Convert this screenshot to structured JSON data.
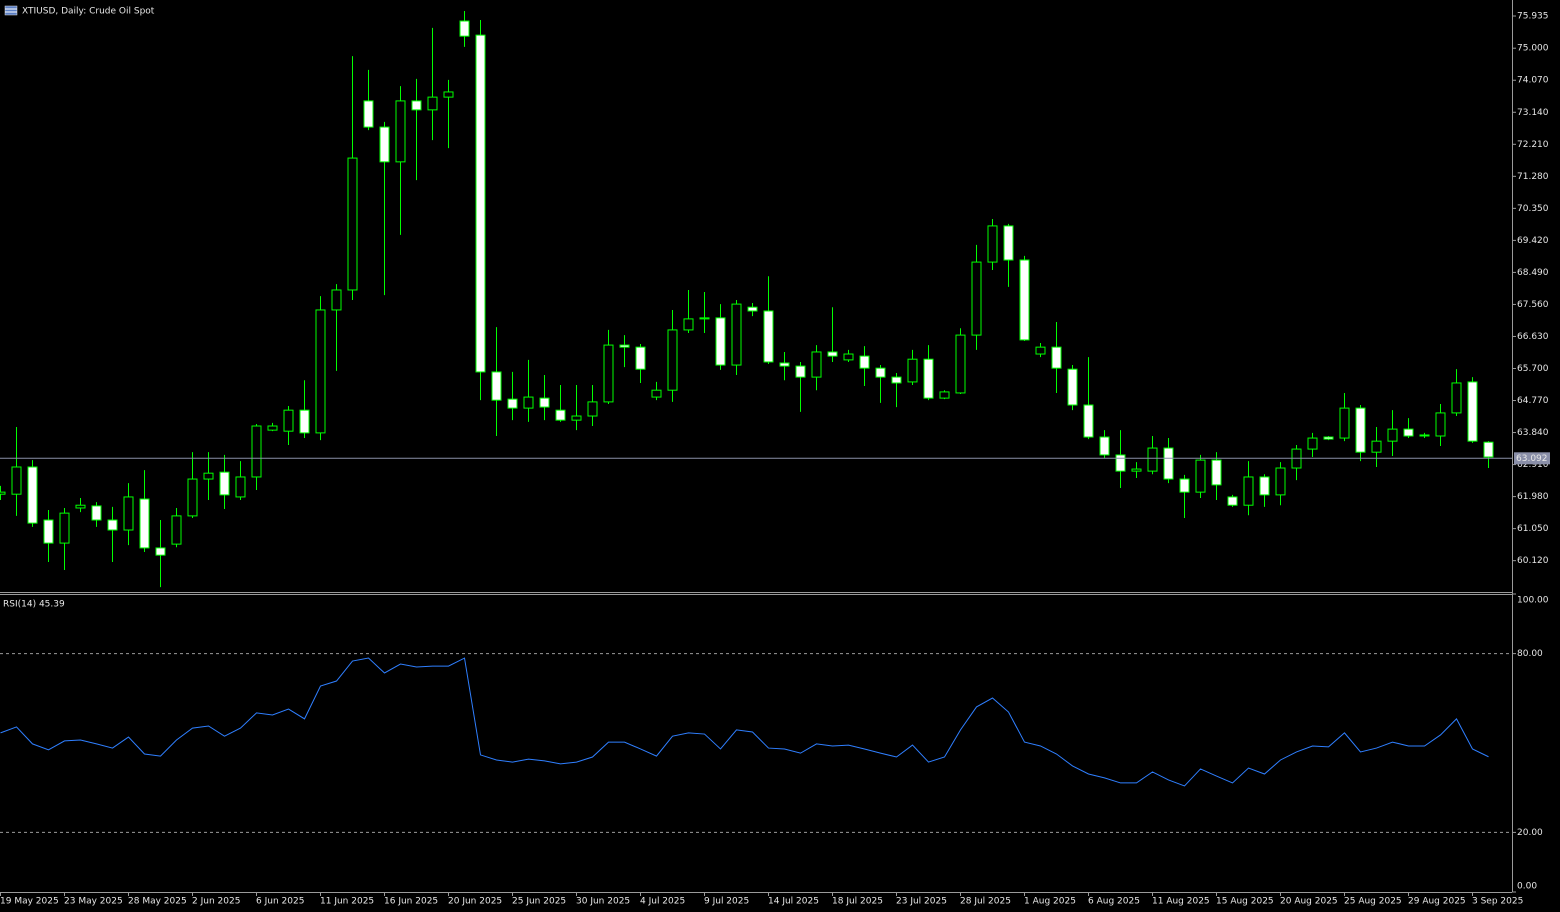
{
  "chart_data": [
    {
      "type": "candlestick",
      "title": "XTIUSD, Daily:  Crude Oil Spot",
      "color": "#00ff00",
      "up_fill": "#000000",
      "down_fill": "#ffffff",
      "categories": [
        "19 May 2025",
        null,
        null,
        null,
        "23 May 2025",
        null,
        null,
        null,
        "28 May 2025",
        null,
        null,
        null,
        "2 Jun 2025",
        null,
        null,
        null,
        "6 Jun 2025",
        null,
        null,
        null,
        "11 Jun 2025",
        null,
        null,
        null,
        "16 Jun 2025",
        null,
        null,
        null,
        "20 Jun 2025",
        null,
        null,
        null,
        "25 Jun 2025",
        null,
        null,
        null,
        "30 Jun 2025",
        null,
        null,
        null,
        "4 Jul 2025",
        null,
        null,
        null,
        "9 Jul 2025",
        null,
        null,
        null,
        "14 Jul 2025",
        null,
        null,
        null,
        "18 Jul 2025",
        null,
        null,
        null,
        "23 Jul 2025",
        null,
        null,
        null,
        "28 Jul 2025",
        null,
        null,
        null,
        "1 Aug 2025",
        null,
        null,
        null,
        "6 Aug 2025",
        null,
        null,
        null,
        "11 Aug 2025",
        null,
        null,
        null,
        "15 Aug 2025",
        null,
        null,
        null,
        "20 Aug 2025",
        null,
        null,
        null,
        "25 Aug 2025",
        null,
        null,
        null,
        "29 Aug 2025",
        null,
        null,
        null,
        "3 Sep 2025",
        null
      ],
      "open": [
        62.05,
        62.05,
        62.84,
        61.3,
        60.63,
        61.65,
        61.71,
        61.3,
        61.01,
        61.91,
        60.49,
        60.6,
        61.42,
        62.49,
        62.69,
        61.97,
        62.55,
        63.91,
        63.88,
        64.49,
        63.83,
        67.4,
        67.98,
        73.47,
        72.71,
        71.7,
        73.47,
        73.21,
        73.58,
        75.79,
        75.38,
        65.6,
        64.81,
        64.55,
        64.84,
        64.49,
        64.2,
        64.32,
        64.73,
        66.38,
        66.32,
        64.87,
        65.07,
        66.82,
        67.14,
        67.17,
        65.8,
        67.48,
        67.37,
        65.86,
        65.77,
        65.45,
        66.18,
        65.95,
        66.06,
        65.71,
        65.45,
        65.31,
        65.97,
        64.84,
        64.99,
        66.67,
        68.79,
        69.84,
        68.85,
        66.12,
        66.32,
        65.68,
        64.64,
        63.71,
        63.19,
        62.72,
        62.72,
        63.39,
        62.49,
        62.11,
        63.04,
        61.97,
        61.73,
        62.55,
        62.03,
        62.81,
        63.36,
        63.71,
        63.68,
        64.55,
        63.27,
        63.59,
        63.94,
        63.77,
        63.74,
        64.41,
        65.31,
        63.56
      ],
      "high": [
        62.29,
        64.0,
        63.04,
        61.59,
        61.65,
        61.94,
        61.82,
        61.68,
        62.37,
        62.75,
        61.3,
        61.65,
        63.27,
        63.27,
        63.19,
        63.01,
        64.09,
        64.12,
        64.61,
        65.36,
        67.8,
        68.15,
        74.77,
        74.37,
        72.86,
        73.9,
        74.11,
        75.59,
        74.08,
        76.08,
        75.82,
        66.9,
        65.6,
        65.95,
        65.51,
        65.22,
        65.22,
        65.22,
        66.82,
        66.67,
        66.41,
        65.31,
        67.4,
        67.98,
        67.92,
        67.57,
        67.69,
        67.6,
        68.38,
        66.18,
        65.89,
        66.38,
        67.48,
        66.24,
        66.35,
        65.8,
        65.57,
        66.24,
        66.38,
        65.07,
        66.87,
        69.29,
        70.04,
        69.9,
        68.97,
        66.44,
        67.05,
        65.8,
        66.03,
        63.91,
        63.91,
        62.98,
        63.74,
        63.68,
        62.61,
        63.19,
        63.27,
        62.03,
        63.01,
        62.63,
        62.98,
        63.48,
        63.83,
        63.74,
        64.99,
        64.64,
        64.0,
        64.49,
        64.26,
        63.83,
        64.67,
        65.68,
        65.45,
        63.59
      ],
      "low": [
        61.88,
        61.42,
        61.1,
        60.08,
        59.85,
        61.53,
        61.1,
        60.08,
        60.57,
        60.37,
        59.35,
        60.51,
        61.36,
        61.88,
        61.62,
        61.88,
        62.17,
        63.88,
        63.48,
        63.68,
        63.62,
        65.63,
        67.69,
        72.62,
        67.83,
        69.58,
        71.17,
        72.33,
        72.1,
        75.04,
        64.78,
        63.74,
        64.2,
        64.15,
        64.2,
        64.15,
        63.91,
        64.03,
        64.67,
        65.74,
        65.28,
        64.78,
        64.73,
        66.73,
        66.73,
        65.66,
        65.51,
        67.22,
        65.83,
        65.36,
        64.44,
        65.07,
        65.89,
        65.89,
        65.19,
        64.7,
        64.58,
        65.22,
        64.78,
        64.81,
        64.96,
        66.24,
        68.56,
        68.07,
        66.5,
        66.03,
        64.99,
        64.49,
        63.65,
        63.1,
        62.23,
        62.52,
        62.63,
        62.37,
        61.36,
        61.94,
        61.88,
        61.68,
        61.44,
        61.68,
        61.73,
        62.46,
        63.13,
        63.62,
        63.59,
        63.01,
        62.84,
        63.16,
        63.68,
        63.68,
        63.45,
        64.32,
        63.54,
        62.81
      ],
      "close": [
        62.11,
        62.84,
        61.21,
        60.63,
        61.5,
        61.73,
        61.3,
        61.01,
        61.97,
        60.49,
        60.28,
        61.42,
        62.49,
        62.66,
        62.03,
        62.55,
        64.03,
        64.03,
        64.49,
        63.83,
        67.4,
        67.98,
        71.81,
        72.71,
        71.7,
        73.47,
        73.21,
        73.58,
        73.73,
        75.35,
        65.6,
        64.78,
        64.55,
        64.87,
        64.58,
        64.2,
        64.32,
        64.73,
        66.38,
        66.32,
        65.68,
        65.07,
        66.82,
        67.14,
        67.17,
        65.8,
        67.57,
        67.37,
        65.89,
        65.77,
        65.45,
        66.18,
        66.06,
        66.12,
        65.71,
        65.45,
        65.28,
        65.97,
        64.84,
        65.02,
        66.67,
        68.79,
        69.84,
        68.85,
        66.53,
        66.32,
        65.71,
        64.64,
        63.71,
        63.19,
        62.72,
        62.78,
        63.39,
        62.49,
        62.11,
        63.04,
        62.32,
        61.73,
        62.55,
        62.03,
        62.81,
        63.36,
        63.68,
        63.65,
        64.55,
        63.27,
        63.59,
        63.94,
        63.74,
        63.74,
        64.41,
        65.28,
        63.59,
        63.13
      ],
      "current_price": 63.092,
      "ylim": [
        59.21,
        76.4
      ],
      "yticks": [
        75.935,
        {
          "value": 75.0,
          "label": "75.000"
        },
        {
          "value": 74.07,
          "label": "74.070"
        },
        {
          "value": 73.14,
          "label": "73.140"
        },
        {
          "value": 72.21,
          "label": "72.210"
        },
        {
          "value": 71.28,
          "label": "71.280"
        },
        {
          "value": 70.35,
          "label": "70.350"
        },
        {
          "value": 69.42,
          "label": "69.420"
        },
        {
          "value": 68.49,
          "label": "68.490"
        },
        {
          "value": 67.56,
          "label": "67.560"
        },
        {
          "value": 66.63,
          "label": "66.630"
        },
        {
          "value": 65.7,
          "label": "65.700"
        },
        {
          "value": 64.77,
          "label": "64.770"
        },
        {
          "value": 63.84,
          "label": "63.840"
        },
        {
          "value": 62.91,
          "label": "62.910"
        },
        {
          "value": 61.98,
          "label": "61.980"
        },
        {
          "value": 61.05,
          "label": "61.050"
        },
        {
          "value": 60.12,
          "label": "60.120"
        }
      ]
    },
    {
      "type": "line",
      "title": "RSI(14) 45.39",
      "series": [
        {
          "color": "#2f7fff",
          "values": [
            53.4,
            55.4,
            49.7,
            47.7,
            50.7,
            51.0,
            49.7,
            48.3,
            52.0,
            46.3,
            45.6,
            51.0,
            55.0,
            55.7,
            52.3,
            55.0,
            60.1,
            59.4,
            61.4,
            58.1,
            69.1,
            70.8,
            77.5,
            78.5,
            73.5,
            76.5,
            75.5,
            75.8,
            75.8,
            78.5,
            46.0,
            44.3,
            43.6,
            44.6,
            44.0,
            43.0,
            43.6,
            45.3,
            50.3,
            50.3,
            48.0,
            45.6,
            52.3,
            53.4,
            53.0,
            48.0,
            54.4,
            53.7,
            48.3,
            48.0,
            46.6,
            49.7,
            49.0,
            49.3,
            48.0,
            46.6,
            45.3,
            49.3,
            43.6,
            45.3,
            54.4,
            62.1,
            65.1,
            60.4,
            50.3,
            49.0,
            46.3,
            42.3,
            39.6,
            38.3,
            36.6,
            36.6,
            40.3,
            37.6,
            35.6,
            41.3,
            38.9,
            36.6,
            41.6,
            39.6,
            44.3,
            47.0,
            49.0,
            48.7,
            53.4,
            47.0,
            48.3,
            50.3,
            49.0,
            49.0,
            52.7,
            58.1,
            48.0,
            45.39
          ]
        }
      ],
      "ylim": [
        0,
        100
      ],
      "yticks": [
        {
          "value": 100,
          "label": "100.00"
        },
        {
          "value": 80,
          "label": "80.00"
        },
        {
          "value": 20,
          "label": "20.00"
        },
        {
          "value": 0,
          "label": "0.00"
        }
      ]
    }
  ]
}
